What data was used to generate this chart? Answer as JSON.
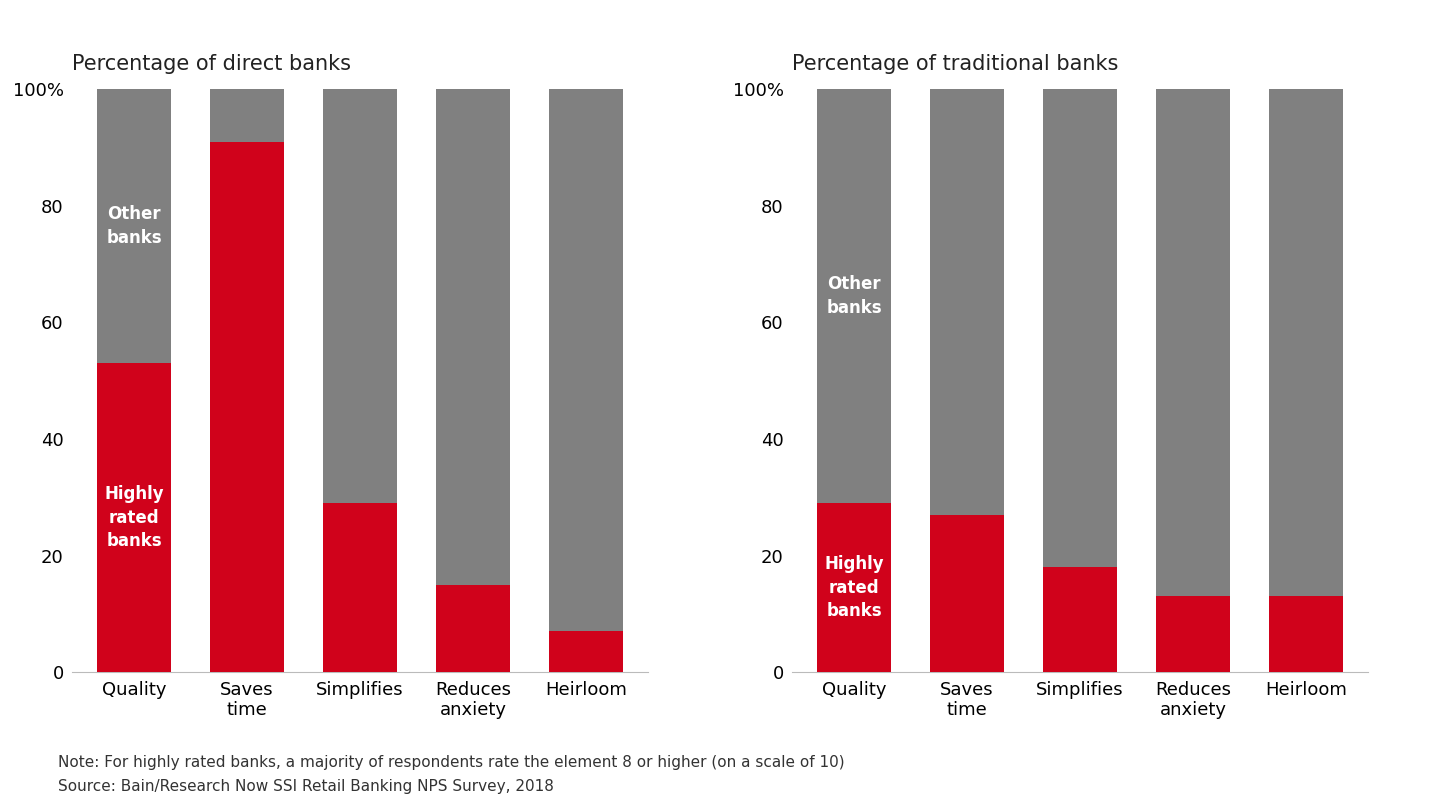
{
  "title_left": "Percentage of direct banks",
  "title_right": "Percentage of traditional banks",
  "categories": [
    "Quality",
    "Saves\ntime",
    "Simplifies",
    "Reduces\nanxiety",
    "Heirloom"
  ],
  "direct_banks_red": [
    53,
    91,
    29,
    15,
    7
  ],
  "direct_banks_gray": [
    47,
    9,
    71,
    85,
    93
  ],
  "traditional_banks_red": [
    29,
    27,
    18,
    13,
    13
  ],
  "traditional_banks_gray": [
    71,
    73,
    82,
    87,
    87
  ],
  "red_color": "#d0021b",
  "gray_color": "#808080",
  "label_highly_rated": "Highly\nrated\nbanks",
  "label_other": "Other\nbanks",
  "note": "Note: For highly rated banks, a majority of respondents rate the element 8 or higher (on a scale of 10)",
  "source": "Source: Bain/Research Now SSI Retail Banking NPS Survey, 2018",
  "yticks": [
    0,
    20,
    40,
    60,
    80,
    100
  ],
  "ylabels": [
    "0",
    "20",
    "40",
    "60",
    "80",
    "100%"
  ],
  "bar_width": 0.65,
  "tick_fontsize": 13,
  "label_fontsize": 12,
  "title_fontsize": 15,
  "note_fontsize": 11
}
